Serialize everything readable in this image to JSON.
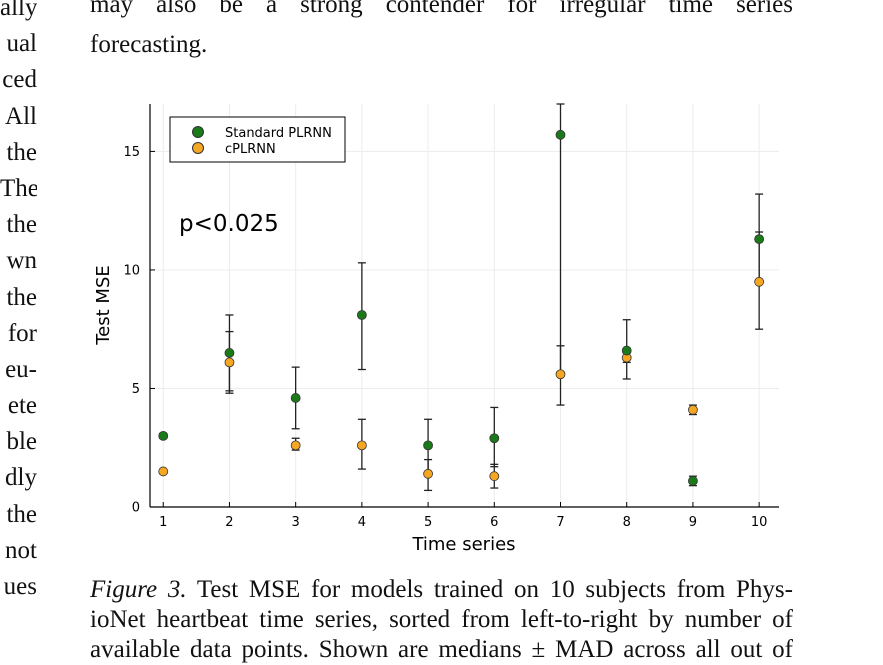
{
  "left_column_fragments": [
    "ally",
    "ual",
    "ced",
    "All",
    "the",
    "The",
    "the",
    "wn",
    "the",
    "for",
    "eu-",
    "ete",
    "ble",
    "dly",
    "the",
    "not",
    "ues"
  ],
  "body_text_lines": [
    "may also be a strong contender for irregular time series",
    "forecasting."
  ],
  "caption": {
    "label": "Figure 3.",
    "line1": "Test MSE for models trained on 10 subjects from Phys-",
    "line2": "ioNet heartbeat time series, sorted from left-to-right by number of",
    "line3": "available data points. Shown are medians ± MAD across all out of"
  },
  "chart_data": {
    "type": "scatter",
    "xlabel": "Time series",
    "ylabel": "Test MSE",
    "xlim": [
      0.8,
      10.3
    ],
    "ylim": [
      0,
      17
    ],
    "xticks": [
      1,
      2,
      3,
      4,
      5,
      6,
      7,
      8,
      9,
      10
    ],
    "yticks": [
      0,
      5,
      10,
      15
    ],
    "grid": true,
    "legend": "top-left",
    "annotation": "p<0.025",
    "series": [
      {
        "name": "Standard PLRNN",
        "color": "#1a7a1a",
        "points": [
          {
            "x": 1,
            "y": 3.0,
            "lo": 2.9,
            "hi": 3.1
          },
          {
            "x": 2,
            "y": 6.5,
            "lo": 4.9,
            "hi": 8.1
          },
          {
            "x": 3,
            "y": 4.6,
            "lo": 3.3,
            "hi": 5.9
          },
          {
            "x": 4,
            "y": 8.1,
            "lo": 5.8,
            "hi": 10.3
          },
          {
            "x": 5,
            "y": 2.6,
            "lo": 1.4,
            "hi": 3.7
          },
          {
            "x": 6,
            "y": 2.9,
            "lo": 1.7,
            "hi": 4.2
          },
          {
            "x": 7,
            "y": 15.7,
            "lo": 5.7,
            "hi": 17.0
          },
          {
            "x": 8,
            "y": 6.6,
            "lo": 5.4,
            "hi": 7.9
          },
          {
            "x": 9,
            "y": 1.1,
            "lo": 0.9,
            "hi": 1.3
          },
          {
            "x": 10,
            "y": 11.3,
            "lo": 9.5,
            "hi": 13.2
          }
        ]
      },
      {
        "name": "cPLRNN",
        "color": "#f5a623",
        "points": [
          {
            "x": 1,
            "y": 1.5,
            "lo": 1.5,
            "hi": 1.5
          },
          {
            "x": 2,
            "y": 6.1,
            "lo": 4.8,
            "hi": 7.4
          },
          {
            "x": 3,
            "y": 2.6,
            "lo": 2.4,
            "hi": 2.9
          },
          {
            "x": 4,
            "y": 2.6,
            "lo": 1.6,
            "hi": 3.7
          },
          {
            "x": 5,
            "y": 1.4,
            "lo": 0.7,
            "hi": 2.0
          },
          {
            "x": 6,
            "y": 1.3,
            "lo": 0.8,
            "hi": 1.8
          },
          {
            "x": 7,
            "y": 5.6,
            "lo": 4.3,
            "hi": 6.8
          },
          {
            "x": 8,
            "y": 6.3,
            "lo": 6.1,
            "hi": 6.5
          },
          {
            "x": 9,
            "y": 4.1,
            "lo": 3.9,
            "hi": 4.3
          },
          {
            "x": 10,
            "y": 9.5,
            "lo": 7.5,
            "hi": 11.6
          }
        ]
      }
    ]
  }
}
